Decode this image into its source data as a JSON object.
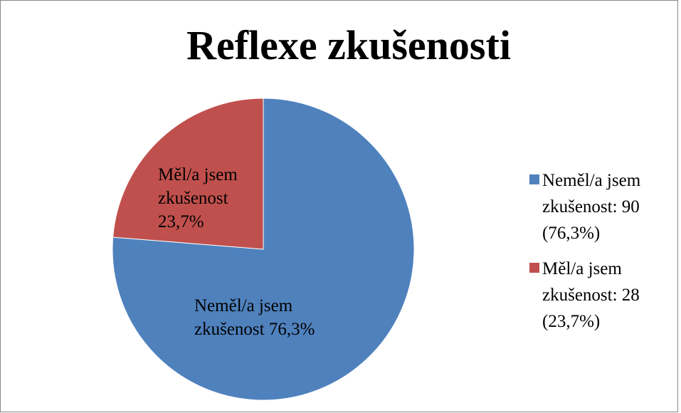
{
  "chart_data": {
    "type": "pie",
    "title": "Reflexe zkušenosti",
    "categories": [
      "Neměl/a jsem zkušenost",
      "Měl/a jsem zkušenost"
    ],
    "values": [
      90,
      28
    ],
    "colors": [
      "#4f81bd",
      "#c0504d"
    ],
    "data_labels": [
      "Neměl/a jsem zkušenost 76,3%",
      "Měl/a jsem zkušenost 23,7%"
    ],
    "legend_labels": [
      "Neměl/a jsem zkušenost: 90 (76,3%)",
      "Měl/a jsem zkušenost: 28 (23,7%)"
    ],
    "legend": "right"
  }
}
